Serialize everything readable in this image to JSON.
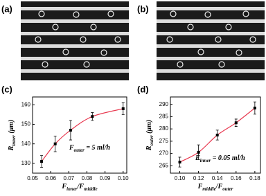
{
  "panels": [
    {
      "label": "(a)"
    },
    {
      "label": "(b)"
    }
  ],
  "chart_data": [
    {
      "type": "scatter",
      "panel_label": "(c)",
      "xlabel": [
        {
          "text": "F"
        },
        {
          "text": "inner",
          "sub": true
        },
        {
          "text": "/F"
        },
        {
          "text": "middle",
          "sub": true
        }
      ],
      "ylabel": [
        {
          "text": "R"
        },
        {
          "text": "inner",
          "sub": true
        },
        {
          "text": " (μm)"
        }
      ],
      "annotation": [
        {
          "text": "F"
        },
        {
          "text": "outer",
          "sub": true
        },
        {
          "text": " = 5 ml/h"
        }
      ],
      "x": [
        0.055,
        0.0625,
        0.071,
        0.083,
        0.1
      ],
      "series": [
        {
          "values": [
            131,
            140,
            147,
            154,
            158
          ],
          "errors": [
            3,
            4,
            5,
            2,
            3
          ],
          "color": "#000000",
          "fit_color": "#e8384f"
        }
      ],
      "xlim": [
        0.05,
        0.102
      ],
      "xticks": [
        {
          "value": 0.05,
          "label": "0.05"
        },
        {
          "value": 0.06,
          "label": "0.06"
        },
        {
          "value": 0.07,
          "label": "0.07"
        },
        {
          "value": 0.08,
          "label": "0.08"
        },
        {
          "value": 0.09,
          "label": "0.09"
        },
        {
          "value": 0.1,
          "label": "0.10"
        }
      ],
      "ylim": [
        125,
        164
      ],
      "yticks": [
        130,
        140,
        150,
        160
      ]
    },
    {
      "type": "scatter",
      "panel_label": "(d)",
      "xlabel": [
        {
          "text": "F"
        },
        {
          "text": "middle",
          "sub": true
        },
        {
          "text": "/F"
        },
        {
          "text": "outer",
          "sub": true
        }
      ],
      "ylabel": [
        {
          "text": "R"
        },
        {
          "text": "outer",
          "sub": true
        },
        {
          "text": " (μm)"
        }
      ],
      "annotation": [
        {
          "text": "F"
        },
        {
          "text": "inner",
          "sub": true
        },
        {
          "text": " = 0.05 ml/h"
        }
      ],
      "x": [
        0.1,
        0.12,
        0.14,
        0.16,
        0.18
      ],
      "series": [
        {
          "values": [
            266.5,
            270.5,
            277.5,
            282.5,
            288.5
          ],
          "errors": [
            2,
            3,
            2,
            1.5,
            2.5
          ],
          "color": "#000000",
          "fit_color": "#e8384f"
        }
      ],
      "xlim": [
        0.09,
        0.186
      ],
      "xticks": [
        {
          "value": 0.1,
          "label": "0.10"
        },
        0.12,
        0.14,
        0.16,
        0.18
      ],
      "ylim": [
        262,
        293
      ],
      "yticks": [
        265,
        270,
        275,
        280,
        285,
        290
      ]
    }
  ]
}
